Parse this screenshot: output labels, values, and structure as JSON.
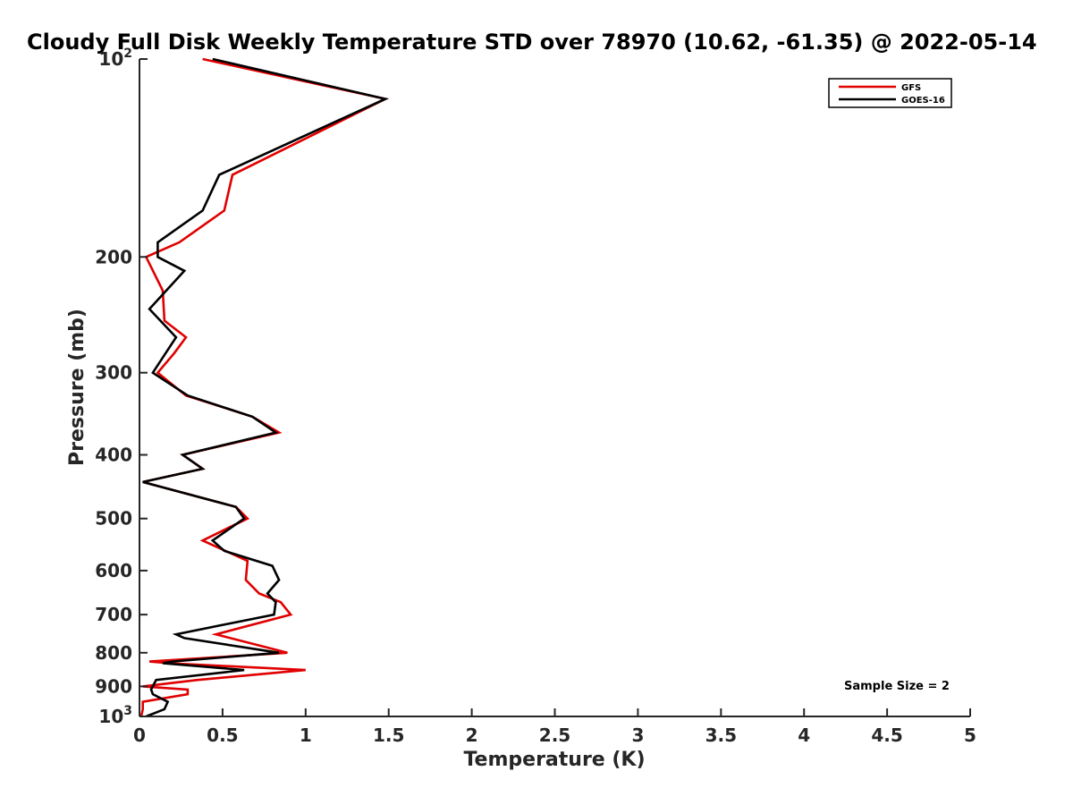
{
  "chart_data": {
    "type": "line",
    "title": "Cloudy Full Disk Weekly Temperature STD over 78970 (10.62, -61.35) @ 2022-05-14",
    "xlabel": "Temperature (K)",
    "ylabel": "Pressure (mb)",
    "xlim": [
      0,
      5
    ],
    "ylim": [
      100,
      1000
    ],
    "y_scale": "log",
    "y_reversed": true,
    "grid": false,
    "legend_position": "top-right",
    "x_ticks": [
      "0",
      "0.5",
      "1",
      "1.5",
      "2",
      "2.5",
      "3",
      "3.5",
      "4",
      "4.5",
      "5"
    ],
    "y_ticks": [
      {
        "value": 100,
        "base": "10",
        "exp": "2",
        "label": ""
      },
      {
        "value": 200,
        "label": "200"
      },
      {
        "value": 300,
        "label": "300"
      },
      {
        "value": 400,
        "label": "400"
      },
      {
        "value": 500,
        "label": "500"
      },
      {
        "value": 600,
        "label": "600"
      },
      {
        "value": 700,
        "label": "700"
      },
      {
        "value": 800,
        "label": "800"
      },
      {
        "value": 900,
        "label": "900"
      },
      {
        "value": 1000,
        "base": "10",
        "exp": "3",
        "label": ""
      }
    ],
    "series": [
      {
        "name": "GFS",
        "color": "#e00000",
        "points": [
          [
            0.38,
            100
          ],
          [
            1.48,
            115
          ],
          [
            0.56,
            150
          ],
          [
            0.51,
            170
          ],
          [
            0.24,
            190
          ],
          [
            0.04,
            200
          ],
          [
            0.14,
            225
          ],
          [
            0.15,
            250
          ],
          [
            0.28,
            265
          ],
          [
            0.21,
            280
          ],
          [
            0.11,
            300
          ],
          [
            0.28,
            325
          ],
          [
            0.68,
            350
          ],
          [
            0.84,
            370
          ],
          [
            0.26,
            400
          ],
          [
            0.38,
            420
          ],
          [
            0.02,
            440
          ],
          [
            0.58,
            480
          ],
          [
            0.65,
            500
          ],
          [
            0.38,
            540
          ],
          [
            0.45,
            550
          ],
          [
            0.65,
            580
          ],
          [
            0.64,
            620
          ],
          [
            0.72,
            650
          ],
          [
            0.85,
            670
          ],
          [
            0.91,
            700
          ],
          [
            0.46,
            750
          ],
          [
            0.89,
            800
          ],
          [
            0.06,
            825
          ],
          [
            0.18,
            830
          ],
          [
            1.0,
            850
          ],
          [
            0.35,
            880
          ],
          [
            0.02,
            900
          ],
          [
            0.29,
            910
          ],
          [
            0.29,
            925
          ],
          [
            0.02,
            950
          ],
          [
            0.02,
            975
          ],
          [
            0.01,
            1000
          ]
        ]
      },
      {
        "name": "GOES-16",
        "color": "#000000",
        "points": [
          [
            0.44,
            100
          ],
          [
            1.48,
            115
          ],
          [
            0.48,
            150
          ],
          [
            0.38,
            170
          ],
          [
            0.11,
            190
          ],
          [
            0.11,
            200
          ],
          [
            0.27,
            210
          ],
          [
            0.06,
            240
          ],
          [
            0.22,
            265
          ],
          [
            0.08,
            300
          ],
          [
            0.29,
            325
          ],
          [
            0.68,
            350
          ],
          [
            0.82,
            370
          ],
          [
            0.26,
            400
          ],
          [
            0.38,
            420
          ],
          [
            0.02,
            440
          ],
          [
            0.58,
            480
          ],
          [
            0.63,
            500
          ],
          [
            0.44,
            540
          ],
          [
            0.51,
            560
          ],
          [
            0.8,
            590
          ],
          [
            0.84,
            620
          ],
          [
            0.77,
            650
          ],
          [
            0.82,
            670
          ],
          [
            0.81,
            700
          ],
          [
            0.22,
            750
          ],
          [
            0.27,
            760
          ],
          [
            0.84,
            800
          ],
          [
            0.2,
            825
          ],
          [
            0.14,
            830
          ],
          [
            0.63,
            850
          ],
          [
            0.1,
            880
          ],
          [
            0.07,
            910
          ],
          [
            0.08,
            925
          ],
          [
            0.17,
            950
          ],
          [
            0.15,
            975
          ],
          [
            0.04,
            1000
          ]
        ]
      }
    ],
    "annotations": [
      {
        "text": "Sample Size = 2"
      }
    ]
  }
}
